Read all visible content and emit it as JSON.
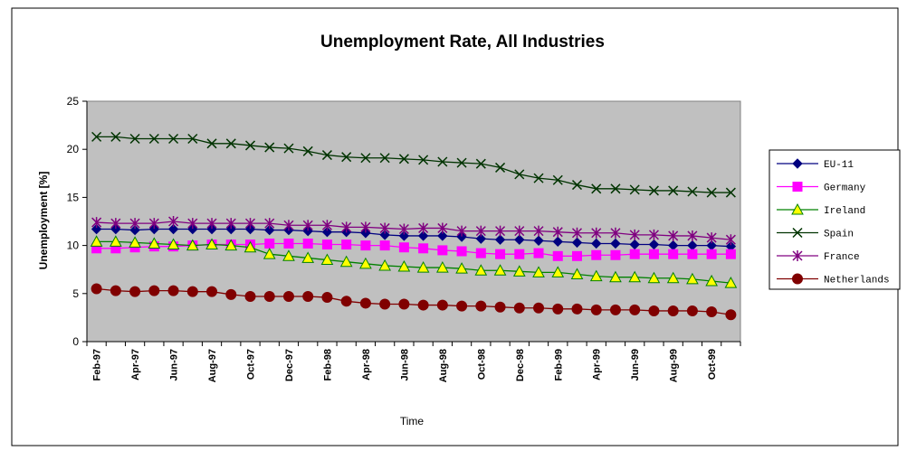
{
  "chart_data": {
    "type": "line",
    "title": "Unemployment Rate, All Industries",
    "xlabel": "Time",
    "ylabel": "Unemployment [%]",
    "ylim": [
      0,
      25
    ],
    "yticks": [
      0,
      5,
      10,
      15,
      20,
      25
    ],
    "grid": false,
    "legend_position": "right",
    "plot_background": "#c0c0c0",
    "x": [
      "Feb-97",
      "Mar-97",
      "Apr-97",
      "May-97",
      "Jun-97",
      "Jul-97",
      "Aug-97",
      "Sep-97",
      "Oct-97",
      "Nov-97",
      "Dec-97",
      "Jan-98",
      "Feb-98",
      "Mar-98",
      "Apr-98",
      "May-98",
      "Jun-98",
      "Jul-98",
      "Aug-98",
      "Sep-98",
      "Oct-98",
      "Nov-98",
      "Dec-98",
      "Jan-99",
      "Feb-99",
      "Mar-99",
      "Apr-99",
      "May-99",
      "Jun-99",
      "Jul-99",
      "Aug-99",
      "Sep-99",
      "Oct-99",
      "Nov-99"
    ],
    "xtick_labels": [
      "Feb-97",
      "Apr-97",
      "Jun-97",
      "Aug-97",
      "Oct-97",
      "Dec-97",
      "Feb-98",
      "Apr-98",
      "Jun-98",
      "Aug-98",
      "Oct-98",
      "Dec-98",
      "Feb-99",
      "Apr-99",
      "Jun-99",
      "Aug-99",
      "Oct-99"
    ],
    "series": [
      {
        "name": "EU-11",
        "color": "#000080",
        "marker": "diamond",
        "values": [
          11.7,
          11.7,
          11.6,
          11.7,
          11.7,
          11.7,
          11.7,
          11.7,
          11.7,
          11.6,
          11.6,
          11.5,
          11.4,
          11.4,
          11.3,
          11.1,
          11.0,
          11.0,
          11.0,
          10.9,
          10.7,
          10.6,
          10.6,
          10.5,
          10.4,
          10.3,
          10.2,
          10.2,
          10.1,
          10.1,
          10.0,
          10.0,
          10.0,
          9.9
        ]
      },
      {
        "name": "Germany",
        "color": "#ff00ff",
        "marker": "square",
        "values": [
          9.7,
          9.7,
          9.8,
          9.9,
          9.9,
          10.0,
          10.1,
          10.1,
          10.1,
          10.2,
          10.2,
          10.2,
          10.1,
          10.1,
          10.0,
          10.0,
          9.8,
          9.7,
          9.5,
          9.4,
          9.2,
          9.1,
          9.1,
          9.2,
          8.9,
          8.9,
          9.0,
          9.0,
          9.1,
          9.1,
          9.1,
          9.1,
          9.1,
          9.1
        ]
      },
      {
        "name": "Ireland",
        "color": "#008000",
        "marker": "triangle",
        "values": [
          10.4,
          10.4,
          10.3,
          10.2,
          10.1,
          10.0,
          10.1,
          10.0,
          9.8,
          9.1,
          8.9,
          8.7,
          8.5,
          8.3,
          8.1,
          7.9,
          7.8,
          7.7,
          7.7,
          7.6,
          7.4,
          7.4,
          7.3,
          7.2,
          7.2,
          7.0,
          6.8,
          6.7,
          6.7,
          6.6,
          6.6,
          6.5,
          6.3,
          6.1
        ]
      },
      {
        "name": "Spain",
        "color": "#003300",
        "marker": "x",
        "values": [
          21.3,
          21.3,
          21.1,
          21.1,
          21.1,
          21.1,
          20.6,
          20.6,
          20.4,
          20.2,
          20.1,
          19.8,
          19.4,
          19.2,
          19.1,
          19.1,
          19.0,
          18.9,
          18.7,
          18.6,
          18.5,
          18.1,
          17.4,
          17.0,
          16.8,
          16.3,
          15.9,
          15.9,
          15.8,
          15.7,
          15.7,
          15.6,
          15.5,
          15.5
        ]
      },
      {
        "name": "France",
        "color": "#800080",
        "marker": "star",
        "values": [
          12.4,
          12.3,
          12.3,
          12.3,
          12.5,
          12.3,
          12.3,
          12.3,
          12.3,
          12.3,
          12.1,
          12.1,
          12.1,
          11.9,
          11.9,
          11.8,
          11.7,
          11.8,
          11.8,
          11.5,
          11.5,
          11.5,
          11.5,
          11.5,
          11.4,
          11.3,
          11.3,
          11.3,
          11.1,
          11.1,
          11.0,
          11.0,
          10.8,
          10.6
        ]
      },
      {
        "name": "Netherlands",
        "color": "#800000",
        "marker": "circle",
        "values": [
          5.5,
          5.3,
          5.2,
          5.3,
          5.3,
          5.2,
          5.2,
          4.9,
          4.7,
          4.7,
          4.7,
          4.7,
          4.6,
          4.2,
          4.0,
          3.9,
          3.9,
          3.8,
          3.8,
          3.7,
          3.7,
          3.6,
          3.5,
          3.5,
          3.4,
          3.4,
          3.3,
          3.3,
          3.3,
          3.2,
          3.2,
          3.2,
          3.1,
          2.8
        ]
      }
    ]
  }
}
